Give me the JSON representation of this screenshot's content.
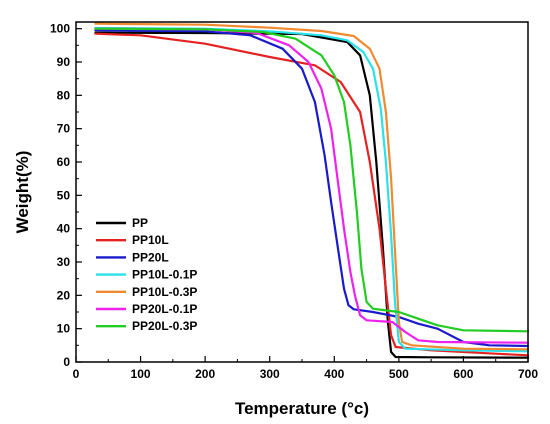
{
  "chart_data": {
    "type": "line",
    "xlabel": "Temperature (°c)",
    "ylabel": "Weight(%)",
    "xlim": [
      0,
      700
    ],
    "ylim": [
      0,
      102
    ],
    "xticks": [
      0,
      100,
      200,
      300,
      400,
      500,
      600,
      700
    ],
    "yticks": [
      0,
      10,
      20,
      30,
      40,
      50,
      60,
      70,
      80,
      90,
      100
    ],
    "grid": false,
    "legend_position": "bottom-left",
    "series": [
      {
        "name": "PP",
        "color": "#000000",
        "points": [
          [
            30,
            98.8
          ],
          [
            200,
            98.7
          ],
          [
            350,
            98.4
          ],
          [
            420,
            96
          ],
          [
            440,
            92
          ],
          [
            455,
            80
          ],
          [
            465,
            60
          ],
          [
            475,
            35
          ],
          [
            483,
            12
          ],
          [
            488,
            3
          ],
          [
            495,
            1.5
          ],
          [
            550,
            1.4
          ],
          [
            700,
            1.3
          ]
        ]
      },
      {
        "name": "PP10L",
        "color": "#e52222",
        "points": [
          [
            30,
            98.5
          ],
          [
            100,
            98
          ],
          [
            200,
            95.5
          ],
          [
            300,
            91.5
          ],
          [
            370,
            89
          ],
          [
            410,
            84
          ],
          [
            440,
            75
          ],
          [
            455,
            60
          ],
          [
            470,
            40
          ],
          [
            480,
            22
          ],
          [
            488,
            8
          ],
          [
            495,
            4.5
          ],
          [
            550,
            3.5
          ],
          [
            650,
            2.5
          ],
          [
            700,
            2
          ]
        ]
      },
      {
        "name": "PP20L",
        "color": "#1a1acc",
        "points": [
          [
            30,
            99.5
          ],
          [
            200,
            99.2
          ],
          [
            270,
            98
          ],
          [
            320,
            94
          ],
          [
            350,
            88
          ],
          [
            370,
            78
          ],
          [
            385,
            62
          ],
          [
            395,
            48
          ],
          [
            405,
            35
          ],
          [
            415,
            22
          ],
          [
            422,
            17
          ],
          [
            430,
            15.8
          ],
          [
            460,
            15
          ],
          [
            500,
            13.5
          ],
          [
            530,
            11.5
          ],
          [
            560,
            10
          ],
          [
            600,
            6
          ],
          [
            640,
            5
          ],
          [
            700,
            4.8
          ]
        ]
      },
      {
        "name": "PP10L-0.1P",
        "color": "#2be0e8",
        "points": [
          [
            30,
            100.2
          ],
          [
            200,
            100
          ],
          [
            300,
            99.2
          ],
          [
            380,
            98
          ],
          [
            420,
            96.5
          ],
          [
            445,
            93
          ],
          [
            460,
            88
          ],
          [
            472,
            76
          ],
          [
            480,
            60
          ],
          [
            488,
            38
          ],
          [
            494,
            18
          ],
          [
            500,
            6
          ],
          [
            510,
            4
          ],
          [
            600,
            3.5
          ],
          [
            700,
            3.2
          ]
        ]
      },
      {
        "name": "PP10L-0.3P",
        "color": "#f08a30",
        "points": [
          [
            30,
            101.5
          ],
          [
            200,
            101.2
          ],
          [
            300,
            100.3
          ],
          [
            380,
            99.3
          ],
          [
            430,
            97.8
          ],
          [
            455,
            94
          ],
          [
            470,
            88
          ],
          [
            480,
            75
          ],
          [
            488,
            55
          ],
          [
            495,
            30
          ],
          [
            500,
            12
          ],
          [
            505,
            6
          ],
          [
            520,
            5
          ],
          [
            600,
            4
          ],
          [
            700,
            3.8
          ]
        ]
      },
      {
        "name": "PP20L-0.1P",
        "color": "#ee22ee",
        "points": [
          [
            30,
            100
          ],
          [
            200,
            99.8
          ],
          [
            280,
            98.7
          ],
          [
            330,
            95
          ],
          [
            360,
            90
          ],
          [
            380,
            82
          ],
          [
            395,
            70
          ],
          [
            405,
            55
          ],
          [
            415,
            40
          ],
          [
            425,
            27
          ],
          [
            432,
            20
          ],
          [
            440,
            14
          ],
          [
            450,
            12.5
          ],
          [
            490,
            12
          ],
          [
            510,
            9
          ],
          [
            530,
            6.5
          ],
          [
            560,
            6
          ],
          [
            700,
            5.8
          ]
        ]
      },
      {
        "name": "PP20L-0.3P",
        "color": "#22cc22",
        "points": [
          [
            30,
            100
          ],
          [
            200,
            99.8
          ],
          [
            290,
            99
          ],
          [
            340,
            97
          ],
          [
            380,
            92
          ],
          [
            400,
            86
          ],
          [
            415,
            78
          ],
          [
            425,
            65
          ],
          [
            435,
            45
          ],
          [
            442,
            28
          ],
          [
            450,
            18
          ],
          [
            460,
            16
          ],
          [
            500,
            15
          ],
          [
            530,
            13
          ],
          [
            560,
            11
          ],
          [
            600,
            9.5
          ],
          [
            700,
            9.2
          ]
        ]
      }
    ]
  }
}
